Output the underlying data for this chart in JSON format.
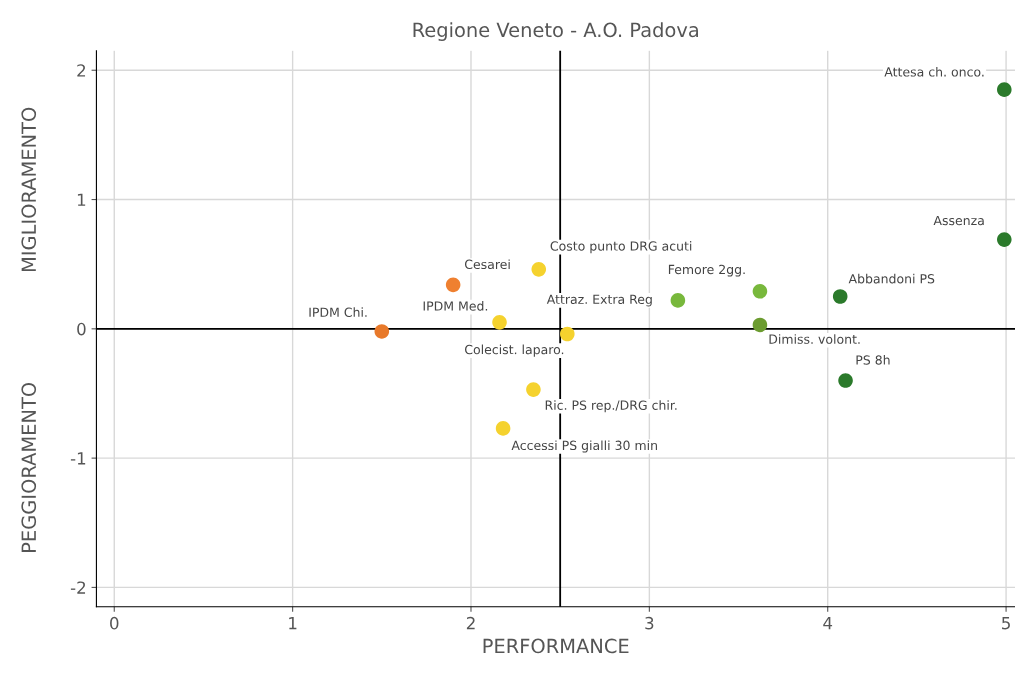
{
  "chart_data": {
    "type": "scatter",
    "title": "Regione Veneto - A.O. Padova",
    "xlabel": "PERFORMANCE",
    "annotations": [
      "MIGLIORAMENTO",
      "PEGGIORAMENTO"
    ],
    "xlim": [
      -0.1,
      5.05
    ],
    "ylim": [
      -2.15,
      2.15
    ],
    "xticks": [
      0,
      1,
      2,
      3,
      4,
      5
    ],
    "yticks": [
      -2,
      -1,
      0,
      1,
      2
    ],
    "grid": true,
    "marker": "circle",
    "ref_lines": [
      {
        "axis": "x",
        "value": 2.5,
        "color": "#000000"
      },
      {
        "axis": "y",
        "value": 0,
        "color": "#000000"
      }
    ],
    "series": [
      {
        "name": "Attesa ch. onco.",
        "color": "#2b7a2b",
        "x": [
          4.99
        ],
        "values": [
          1.85
        ]
      },
      {
        "name": "Assenza",
        "color": "#2b7a2b",
        "x": [
          4.99
        ],
        "values": [
          0.69
        ]
      },
      {
        "name": "Abbandoni PS",
        "color": "#2b7a2b",
        "x": [
          4.07
        ],
        "values": [
          0.25
        ]
      },
      {
        "name": "PS 8h",
        "color": "#2b7a2b",
        "x": [
          4.1
        ],
        "values": [
          -0.4
        ]
      },
      {
        "name": "Dimiss. volont.",
        "color": "#6c9c30",
        "x": [
          3.62
        ],
        "values": [
          0.03
        ]
      },
      {
        "name": "Femore 2gg.",
        "color": "#78b83c",
        "x": [
          3.62
        ],
        "values": [
          0.29
        ]
      },
      {
        "name": "Attraz. Extra Reg",
        "color": "#78b83c",
        "x": [
          3.16
        ],
        "values": [
          0.22
        ]
      },
      {
        "name": "Costo punto DRG acuti",
        "color": "#f5d22e",
        "x": [
          2.38
        ],
        "values": [
          0.46
        ]
      },
      {
        "name": "Cesarei",
        "color": "#ef8030",
        "x": [
          1.9
        ],
        "values": [
          0.34
        ]
      },
      {
        "name": "IPDM Chi.",
        "color": "#e8792a",
        "x": [
          1.5
        ],
        "values": [
          -0.02
        ]
      },
      {
        "name": "IPDM Med.",
        "color": "#f5d22e",
        "x": [
          2.16
        ],
        "values": [
          0.05
        ]
      },
      {
        "name": "Colecist. laparo.",
        "color": "#f5d22e",
        "x": [
          2.54
        ],
        "values": [
          -0.04
        ]
      },
      {
        "name": "Ric. PS rep./DRG chir.",
        "color": "#f5d22e",
        "x": [
          2.35
        ],
        "values": [
          -0.47
        ]
      },
      {
        "name": "Accessi PS gialli 30 min",
        "color": "#f5d22e",
        "x": [
          2.18
        ],
        "values": [
          -0.77
        ]
      }
    ]
  }
}
